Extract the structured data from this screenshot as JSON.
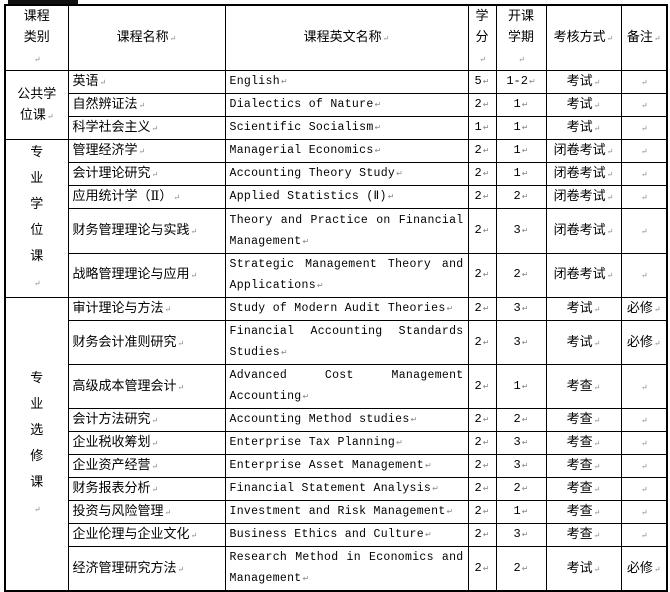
{
  "table": {
    "headers": {
      "category": "课程类别",
      "name_cn": "课程名称",
      "name_en": "课程英文名称",
      "credits": "学分",
      "semester": "开课学期",
      "assessment": "考核方式",
      "remark": "备注"
    },
    "groups": [
      {
        "category": "公共学位课",
        "rows": [
          {
            "cn": "英语",
            "en": "English",
            "credits": "5",
            "semester": "1-2",
            "assessment": "考试",
            "remark": ""
          },
          {
            "cn": "自然辨证法",
            "en": "Dialectics of Nature",
            "credits": "2",
            "semester": "1",
            "assessment": "考试",
            "remark": ""
          },
          {
            "cn": "科学社会主义",
            "en": "Scientific Socialism",
            "credits": "1",
            "semester": "1",
            "assessment": "考试",
            "remark": ""
          }
        ]
      },
      {
        "category": "专业学位课",
        "rows": [
          {
            "cn": "管理经济学",
            "en": "Managerial Economics",
            "credits": "2",
            "semester": "1",
            "assessment": "闭卷考试",
            "remark": ""
          },
          {
            "cn": "会计理论研究",
            "en": "Accounting Theory Study",
            "credits": "2",
            "semester": "1",
            "assessment": "闭卷考试",
            "remark": ""
          },
          {
            "cn": "应用统计学（Ⅱ）",
            "en": "Applied Statistics (Ⅱ)",
            "credits": "2",
            "semester": "2",
            "assessment": "闭卷考试",
            "remark": ""
          },
          {
            "cn": "财务管理理论与实践",
            "en": "Theory and Practice on Financial Management",
            "credits": "2",
            "semester": "3",
            "assessment": "闭卷考试",
            "remark": ""
          },
          {
            "cn": "战略管理理论与应用",
            "en": "Strategic Management Theory and Applications",
            "credits": "2",
            "semester": "2",
            "assessment": "闭卷考试",
            "remark": ""
          }
        ]
      },
      {
        "category": "专业选修课",
        "rows": [
          {
            "cn": "审计理论与方法",
            "en": "Study of Modern Audit Theories",
            "credits": "2",
            "semester": "3",
            "assessment": "考试",
            "remark": "必修"
          },
          {
            "cn": "财务会计准则研究",
            "en": "Financial Accounting Standards Studies",
            "credits": "2",
            "semester": "3",
            "assessment": "考试",
            "remark": "必修"
          },
          {
            "cn": "高级成本管理会计",
            "en": "Advanced Cost Management Accounting",
            "credits": "2",
            "semester": "1",
            "assessment": "考查",
            "remark": ""
          },
          {
            "cn": "会计方法研究",
            "en": "Accounting Method studies",
            "credits": "2",
            "semester": "2",
            "assessment": "考查",
            "remark": ""
          },
          {
            "cn": "企业税收筹划",
            "en": "Enterprise Tax Planning",
            "credits": "2",
            "semester": "3",
            "assessment": "考查",
            "remark": ""
          },
          {
            "cn": "企业资产经营",
            "en": "Enterprise Asset Management",
            "credits": "2",
            "semester": "3",
            "assessment": "考查",
            "remark": ""
          },
          {
            "cn": "财务报表分析",
            "en": "Financial Statement Analysis",
            "credits": "2",
            "semester": "2",
            "assessment": "考查",
            "remark": ""
          },
          {
            "cn": "投资与风险管理",
            "en": "Investment and Risk Management",
            "credits": "2",
            "semester": "1",
            "assessment": "考查",
            "remark": ""
          },
          {
            "cn": "企业伦理与企业文化",
            "en": "Business Ethics and Culture",
            "credits": "2",
            "semester": "3",
            "assessment": "考查",
            "remark": ""
          },
          {
            "cn": "经济管理研究方法",
            "en": "Research Method in Economics and Management",
            "credits": "2",
            "semester": "2",
            "assessment": "考试",
            "remark": "必修"
          }
        ]
      }
    ]
  }
}
